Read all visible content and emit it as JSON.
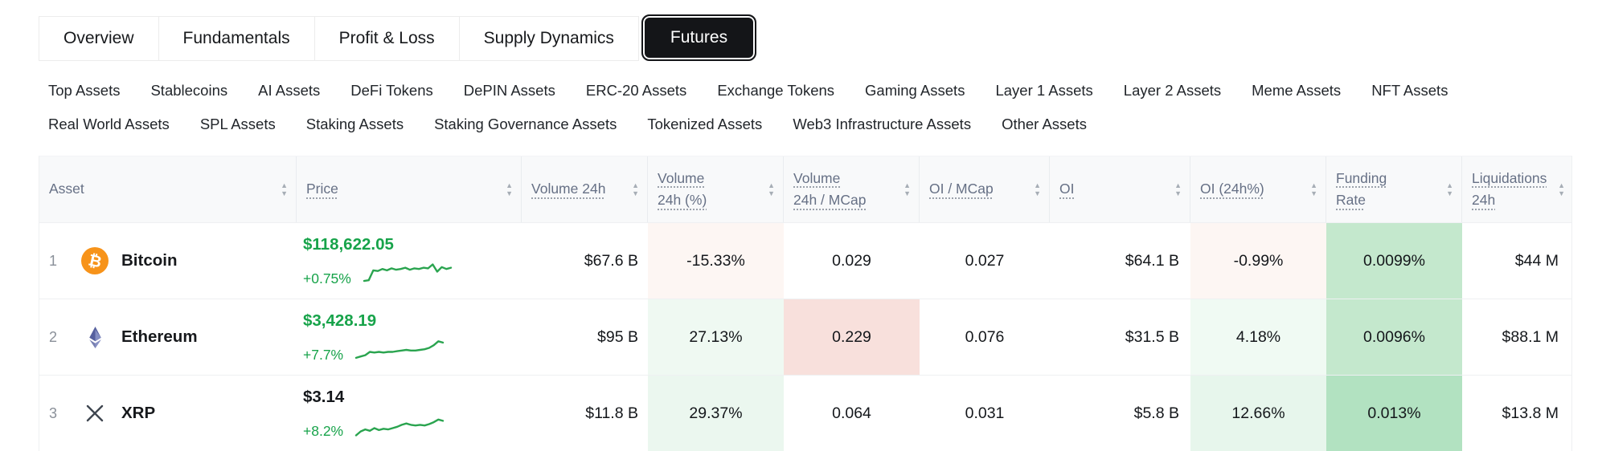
{
  "colors": {
    "green_text": "#17a34a",
    "spark_green": "#2aa44f",
    "dark_text": "#14171b",
    "tab_active_bg": "#141518",
    "bitcoin_orange": "#f7931a",
    "eth_slate_dark": "#555f9e",
    "eth_slate_light": "#8d96c9",
    "xrp_gray": "#3f4650"
  },
  "tabs": [
    {
      "label": "Overview",
      "active": false
    },
    {
      "label": "Fundamentals",
      "active": false
    },
    {
      "label": "Profit & Loss",
      "active": false
    },
    {
      "label": "Supply Dynamics",
      "active": false
    },
    {
      "label": "Futures",
      "active": true
    }
  ],
  "filters": [
    "Top Assets",
    "Stablecoins",
    "AI Assets",
    "DeFi Tokens",
    "DePIN Assets",
    "ERC-20 Assets",
    "Exchange Tokens",
    "Gaming Assets",
    "Layer 1 Assets",
    "Layer 2 Assets",
    "Meme Assets",
    "NFT Assets",
    "Real World Assets",
    "SPL Assets",
    "Staking Assets",
    "Staking Governance Assets",
    "Tokenized Assets",
    "Web3 Infrastructure Assets",
    "Other Assets"
  ],
  "table": {
    "columns": [
      {
        "key": "asset",
        "label": "Asset",
        "underline": false,
        "align": "left"
      },
      {
        "key": "price",
        "label": "Price",
        "underline": true,
        "align": "left"
      },
      {
        "key": "vol24h",
        "label": "Volume 24h",
        "underline": true,
        "align": "right"
      },
      {
        "key": "vol24hPct",
        "label": "Volume\n24h (%)",
        "underline": true,
        "align": "center"
      },
      {
        "key": "vol24hMcap",
        "label": "Volume\n24h / MCap",
        "underline": true,
        "align": "center"
      },
      {
        "key": "oiMcap",
        "label": "OI / MCap",
        "underline": true,
        "align": "center"
      },
      {
        "key": "oi",
        "label": "OI",
        "underline": true,
        "align": "right"
      },
      {
        "key": "oi24h",
        "label": "OI (24h%)",
        "underline": true,
        "align": "center"
      },
      {
        "key": "funding",
        "label": "Funding\nRate",
        "underline": true,
        "align": "center"
      },
      {
        "key": "liq24h",
        "label": "Liquidations\n24h",
        "underline": true,
        "align": "right"
      }
    ],
    "rows": [
      {
        "rank": "1",
        "name": "Bitcoin",
        "icon": "bitcoin",
        "price": "$118,622.05",
        "price_color": "#17a34a",
        "change": "+0.75%",
        "spark": [
          6,
          7,
          22,
          21,
          24,
          22,
          25,
          23,
          24,
          26,
          23,
          25,
          24,
          26,
          25,
          31,
          20,
          27,
          24,
          26
        ],
        "cells": {
          "vol24h": {
            "v": "$67.6 B"
          },
          "vol24hPct": {
            "v": "-15.33%",
            "bg": "#fdf6f3"
          },
          "vol24hMcap": {
            "v": "0.029"
          },
          "oiMcap": {
            "v": "0.027"
          },
          "oi": {
            "v": "$64.1 B"
          },
          "oi24h": {
            "v": "-0.99%",
            "bg": "#fdf6f3"
          },
          "funding": {
            "v": "0.0099%",
            "bg": "#c4e8cd"
          },
          "liq24h": {
            "v": "$44 M"
          }
        }
      },
      {
        "rank": "2",
        "name": "Ethereum",
        "icon": "ethereum",
        "price": "$3,428.19",
        "price_color": "#17a34a",
        "change": "+7.7%",
        "spark": [
          5,
          7,
          9,
          14,
          13,
          14,
          13,
          14,
          14,
          15,
          16,
          17,
          16,
          16,
          17,
          18,
          20,
          24,
          30,
          28
        ],
        "cells": {
          "vol24h": {
            "v": "$95 B"
          },
          "vol24hPct": {
            "v": "27.13%",
            "bg": "#eff9f2"
          },
          "vol24hMcap": {
            "v": "0.229",
            "bg": "#f8e0dc"
          },
          "oiMcap": {
            "v": "0.076"
          },
          "oi": {
            "v": "$31.5 B"
          },
          "oi24h": {
            "v": "4.18%",
            "bg": "#f0faf3"
          },
          "funding": {
            "v": "0.0096%",
            "bg": "#c4e8cd"
          },
          "liq24h": {
            "v": "$88.1 M"
          }
        }
      },
      {
        "rank": "3",
        "name": "XRP",
        "icon": "xrp",
        "price": "$3.14",
        "price_color": "#14171b",
        "change": "+8.2%",
        "spark": [
          3,
          9,
          12,
          10,
          14,
          11,
          13,
          12,
          14,
          16,
          19,
          21,
          19,
          18,
          19,
          18,
          20,
          23,
          27,
          25
        ],
        "cells": {
          "vol24h": {
            "v": "$11.8 B"
          },
          "vol24hPct": {
            "v": "29.37%",
            "bg": "#ebf7ef"
          },
          "vol24hMcap": {
            "v": "0.064"
          },
          "oiMcap": {
            "v": "0.031"
          },
          "oi": {
            "v": "$5.8 B"
          },
          "oi24h": {
            "v": "12.66%",
            "bg": "#e7f6ec"
          },
          "funding": {
            "v": "0.013%",
            "bg": "#b2e2c1"
          },
          "liq24h": {
            "v": "$13.8 M"
          }
        }
      }
    ]
  },
  "sort_icons": {
    "up": "▲",
    "down": "▼"
  }
}
